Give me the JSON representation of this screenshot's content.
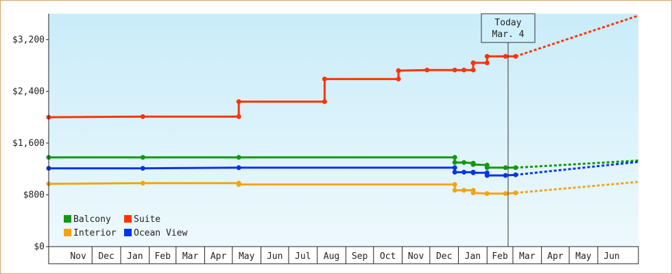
{
  "chart_data": {
    "type": "line",
    "y_ticks": [
      "$0",
      "$800",
      "$1,600",
      "$2,400",
      "$3,200"
    ],
    "y_tick_values": [
      0,
      800,
      1600,
      2400,
      3200
    ],
    "ylim": [
      0,
      3600
    ],
    "x_tick_labels": [
      "Nov",
      "Dec",
      "Jan",
      "Feb",
      "Mar",
      "Apr",
      "May",
      "Jun",
      "Jul",
      "Aug",
      "Sep",
      "Oct",
      "Nov",
      "Dec",
      "Jan",
      "Feb",
      "Mar",
      "Apr",
      "May",
      "Jun"
    ],
    "xlim": [
      "2023-10-15",
      "2025-07-15"
    ],
    "today": {
      "line1": "Today",
      "line2": "Mar. 4",
      "date": "2025-03-04"
    },
    "grid": false,
    "legend_position": "bottom-left",
    "series": [
      {
        "name": "Suite",
        "color": "#ff3300",
        "points": [
          [
            "2023-10-15",
            2000
          ],
          [
            "2024-01-25",
            2010
          ],
          [
            "2024-05-08",
            2010
          ],
          [
            "2024-05-08",
            2240
          ],
          [
            "2024-08-09",
            2240
          ],
          [
            "2024-08-09",
            2590
          ],
          [
            "2024-10-28",
            2590
          ],
          [
            "2024-10-28",
            2720
          ],
          [
            "2024-11-28",
            2730
          ],
          [
            "2024-12-28",
            2730
          ],
          [
            "2025-01-07",
            2730
          ],
          [
            "2025-01-17",
            2730
          ],
          [
            "2025-01-17",
            2840
          ],
          [
            "2025-01-17",
            2840
          ],
          [
            "2025-02-01",
            2840
          ],
          [
            "2025-02-01",
            2940
          ],
          [
            "2025-02-21",
            2940
          ],
          [
            "2025-03-04",
            2940
          ]
        ],
        "forecast": [
          [
            "2025-03-04",
            2940
          ],
          [
            "2025-07-15",
            3570
          ]
        ]
      },
      {
        "name": "Balcony",
        "color": "#119911",
        "points": [
          [
            "2023-10-15",
            1380
          ],
          [
            "2024-01-25",
            1380
          ],
          [
            "2024-05-08",
            1380
          ],
          [
            "2024-12-28",
            1380
          ],
          [
            "2024-12-28",
            1300
          ],
          [
            "2025-01-07",
            1300
          ],
          [
            "2025-01-17",
            1290
          ],
          [
            "2025-01-17",
            1270
          ],
          [
            "2025-02-01",
            1260
          ],
          [
            "2025-02-01",
            1220
          ],
          [
            "2025-02-21",
            1220
          ],
          [
            "2025-03-04",
            1220
          ]
        ],
        "forecast": [
          [
            "2025-03-04",
            1220
          ],
          [
            "2025-07-15",
            1330
          ]
        ]
      },
      {
        "name": "Ocean View",
        "color": "#0033ee",
        "points": [
          [
            "2023-10-15",
            1210
          ],
          [
            "2024-01-25",
            1210
          ],
          [
            "2024-05-08",
            1220
          ],
          [
            "2024-12-28",
            1220
          ],
          [
            "2024-12-28",
            1150
          ],
          [
            "2025-01-07",
            1150
          ],
          [
            "2025-01-17",
            1150
          ],
          [
            "2025-01-17",
            1140
          ],
          [
            "2025-02-01",
            1140
          ],
          [
            "2025-02-01",
            1100
          ],
          [
            "2025-02-21",
            1100
          ],
          [
            "2025-03-04",
            1110
          ]
        ],
        "forecast": [
          [
            "2025-03-04",
            1110
          ],
          [
            "2025-07-15",
            1310
          ]
        ]
      },
      {
        "name": "Interior",
        "color": "#f5a316",
        "points": [
          [
            "2023-10-15",
            970
          ],
          [
            "2024-01-25",
            980
          ],
          [
            "2024-05-08",
            980
          ],
          [
            "2024-05-08",
            960
          ],
          [
            "2024-12-28",
            960
          ],
          [
            "2024-12-28",
            870
          ],
          [
            "2025-01-07",
            870
          ],
          [
            "2025-01-17",
            870
          ],
          [
            "2025-01-17",
            830
          ],
          [
            "2025-02-01",
            820
          ],
          [
            "2025-02-21",
            820
          ],
          [
            "2025-03-04",
            830
          ]
        ],
        "forecast": [
          [
            "2025-03-04",
            830
          ],
          [
            "2025-07-15",
            1000
          ]
        ]
      }
    ],
    "legend": [
      {
        "name": "Balcony",
        "color": "#119911"
      },
      {
        "name": "Suite",
        "color": "#ff3300"
      },
      {
        "name": "Interior",
        "color": "#f5a316"
      },
      {
        "name": "Ocean View",
        "color": "#0033ee"
      }
    ]
  }
}
